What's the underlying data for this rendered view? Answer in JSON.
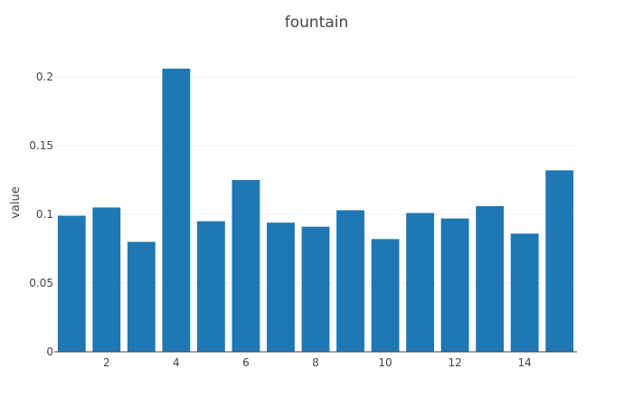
{
  "chart_data": {
    "type": "bar",
    "title": "fountain",
    "xlabel": "",
    "ylabel": "value",
    "x": [
      1,
      2,
      3,
      4,
      5,
      6,
      7,
      8,
      9,
      10,
      11,
      12,
      13,
      14,
      15
    ],
    "values": [
      0.099,
      0.105,
      0.08,
      0.206,
      0.095,
      0.125,
      0.094,
      0.091,
      0.103,
      0.082,
      0.101,
      0.097,
      0.106,
      0.086,
      0.132
    ],
    "xlim": [
      0.5,
      15.5
    ],
    "ylim": [
      0,
      0.2
    ],
    "x_ticks": [
      2,
      4,
      6,
      8,
      10,
      12,
      14
    ],
    "x_tick_labels": [
      "2",
      "4",
      "6",
      "8",
      "10",
      "12",
      "14"
    ],
    "y_ticks": [
      0,
      0.05,
      0.1,
      0.15,
      0.2
    ],
    "y_tick_labels": [
      "0",
      "0.05",
      "0.1",
      "0.15",
      "0.2"
    ],
    "grid": "y",
    "bar_color": "#1f77b4"
  }
}
